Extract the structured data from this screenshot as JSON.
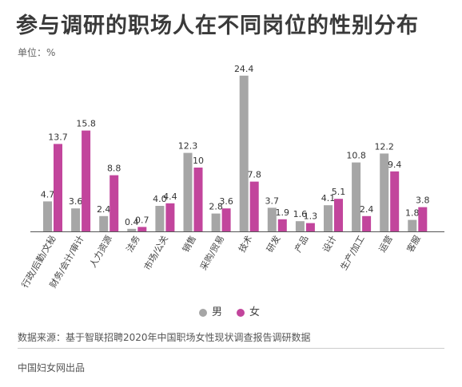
{
  "title": "参与调研的职场人在不同岗位的性别分布",
  "unit_label": "单位：%",
  "legend": [
    {
      "label": "男",
      "color": "#a6a6a6"
    },
    {
      "label": "女",
      "color": "#c2459c"
    }
  ],
  "source": "数据来源：基于智联招聘2020年中国职场女性现状调查报告调研数据",
  "footer": "中国妇女网出品",
  "chart_data": {
    "type": "bar",
    "title": "参与调研的职场人在不同岗位的性别分布",
    "ylabel": "单位：%",
    "ylim": [
      0,
      25
    ],
    "grid": false,
    "legend_position": "bottom",
    "categories": [
      "行政/后勤/文秘",
      "财务/会计/审计",
      "人力资源",
      "法务",
      "市场/公关",
      "销售",
      "采购/贸易",
      "技术",
      "研发",
      "产品",
      "设计",
      "生产/加工",
      "运营",
      "客服"
    ],
    "series": [
      {
        "name": "男",
        "color": "#a6a6a6",
        "values": [
          4.7,
          3.6,
          2.4,
          0.4,
          4.0,
          12.3,
          2.8,
          24.4,
          3.7,
          1.6,
          4.1,
          10.8,
          12.2,
          1.8
        ]
      },
      {
        "name": "女",
        "color": "#c2459c",
        "values": [
          13.7,
          15.8,
          8.8,
          0.7,
          4.4,
          10,
          3.6,
          7.8,
          1.9,
          1.3,
          5.1,
          2.4,
          9.4,
          3.8
        ]
      }
    ],
    "value_labels": [
      [
        "4.7",
        "3.6",
        "2.4",
        "0.4",
        "4.0",
        "12.3",
        "2.8",
        "24.4",
        "3.7",
        "1.6",
        "4.1",
        "10.8",
        "12.2",
        "1.8"
      ],
      [
        "13.7",
        "15.8",
        "8.8",
        "0.7",
        "4.4",
        "10",
        "3.6",
        "7.8",
        "1.9",
        "1.3",
        "5.1",
        "2.4",
        "9.4",
        "3.8"
      ]
    ]
  }
}
